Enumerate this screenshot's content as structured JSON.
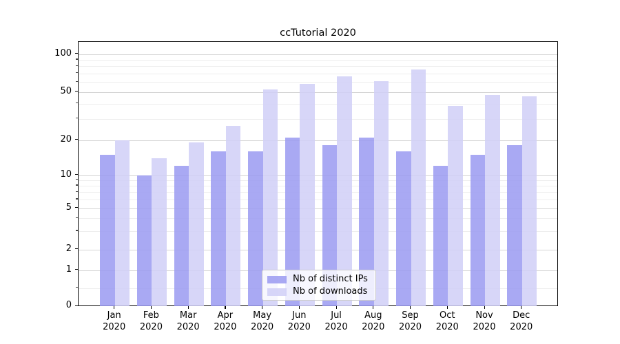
{
  "title": "ccTutorial 2020",
  "chart_data": {
    "type": "bar",
    "title": "ccTutorial 2020",
    "categories": [
      "Jan",
      "Feb",
      "Mar",
      "Apr",
      "May",
      "Jun",
      "Jul",
      "Aug",
      "Sep",
      "Oct",
      "Nov",
      "Dec"
    ],
    "category_year": "2020",
    "series": [
      {
        "name": "Nb of distinct IPs",
        "color": "#9a9af1",
        "values": [
          15,
          10,
          12,
          16,
          16,
          21,
          18,
          21,
          16,
          12,
          15,
          18
        ]
      },
      {
        "name": "Nb of downloads",
        "color": "#d0cff7",
        "values": [
          20,
          14,
          19,
          26,
          52,
          58,
          66,
          61,
          75,
          38,
          47,
          46
        ]
      }
    ],
    "xlabel": "",
    "ylabel": "",
    "yscale": "symlog",
    "ylim": [
      0,
      125
    ],
    "y_major_ticks": [
      100,
      50,
      20,
      10,
      5,
      2,
      1,
      0
    ],
    "y_minor_ticks": [
      90,
      80,
      70,
      60,
      40,
      30,
      9,
      8,
      7,
      6,
      4,
      3,
      0.5
    ],
    "grid": "on",
    "legend_position": "lower center"
  }
}
